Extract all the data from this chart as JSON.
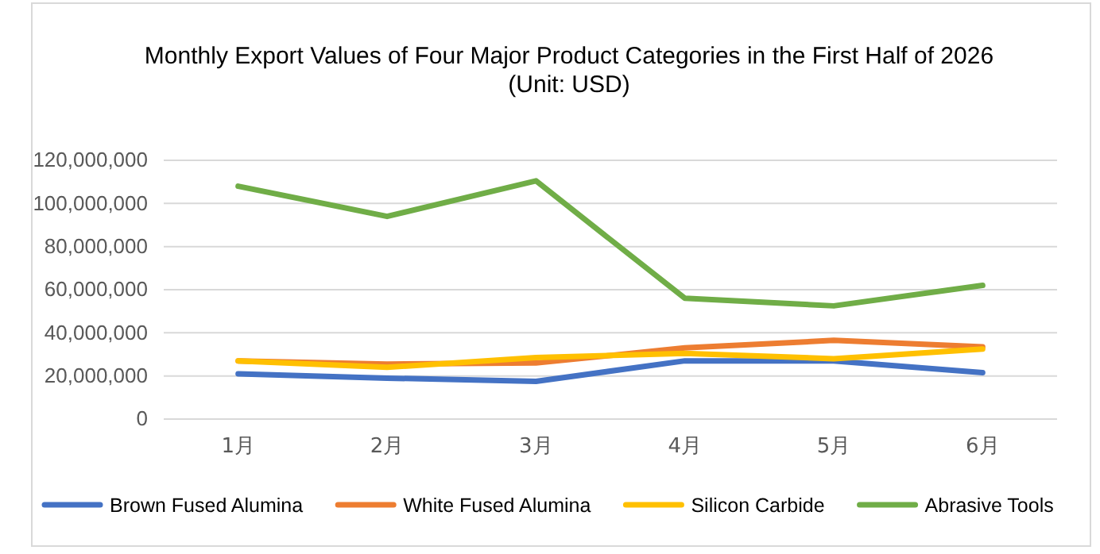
{
  "chart_data": {
    "type": "line",
    "title": "Monthly Export Values of Four Major Product Categories in the First Half of 2026\n(Unit: USD)",
    "categories": [
      "1月",
      "2月",
      "3月",
      "4月",
      "5月",
      "6月"
    ],
    "series": [
      {
        "name": "Brown Fused Alumina",
        "color": "#4472c4",
        "values": [
          21000000,
          19000000,
          17500000,
          27000000,
          27000000,
          21500000
        ]
      },
      {
        "name": "White Fused Alumina",
        "color": "#ed7d31",
        "values": [
          27000000,
          25500000,
          26000000,
          33000000,
          36500000,
          33500000
        ]
      },
      {
        "name": "Silicon Carbide",
        "color": "#ffc000",
        "values": [
          27000000,
          24000000,
          28500000,
          30500000,
          28000000,
          32500000
        ]
      },
      {
        "name": "Abrasive Tools",
        "color": "#70ad47",
        "values": [
          108000000,
          94000000,
          110500000,
          56000000,
          52500000,
          62000000
        ]
      }
    ],
    "ylim": [
      0,
      120000000
    ],
    "yticks": [
      {
        "value": 0,
        "label": "0"
      },
      {
        "value": 20000000,
        "label": "20,000,000"
      },
      {
        "value": 40000000,
        "label": "40,000,000"
      },
      {
        "value": 60000000,
        "label": "60,000,000"
      },
      {
        "value": 80000000,
        "label": "80,000,000"
      },
      {
        "value": 100000000,
        "label": "100,000,000"
      },
      {
        "value": 120000000,
        "label": "120,000,000"
      }
    ],
    "grid": "y",
    "legend": "bottom",
    "marker": "none",
    "line_style": "solid"
  }
}
